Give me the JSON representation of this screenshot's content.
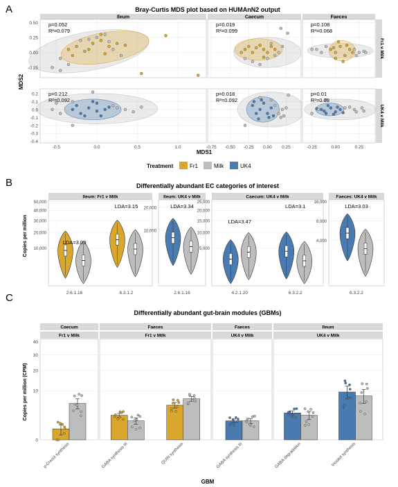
{
  "colors": {
    "Fr1": "#D9A62E",
    "Milk": "#BDBDBD",
    "UK4": "#4A7BB0",
    "strip": "#D9D9D9",
    "grid": "#EBEBEB"
  },
  "panelA": {
    "letter": "A",
    "title": "Bray-Curtis MDS plot based on HUMAnN2 output",
    "xlabel": "MDS1",
    "ylabel": "MDS2",
    "col_strips": [
      "Ileum",
      "Caecum",
      "Faeces"
    ],
    "row_strips": [
      "Fr1 v Milk",
      "UK4 v Milk"
    ],
    "legend_title": "Treatment",
    "legend_items": [
      "Fr1",
      "Milk",
      "UK4"
    ],
    "stats": [
      [
        "p=0.052",
        "R²=0.079"
      ],
      [
        "p=0.019",
        "R²=0.099"
      ],
      [
        "p=0.108",
        "R²=0.068"
      ],
      [
        "p=0.212",
        "R²=0.092"
      ],
      [
        "p=0.018",
        "R²=0.092"
      ],
      [
        "p=0.01",
        "R²=0.09"
      ]
    ],
    "y_ticks_top": [
      "0.50",
      "0.25",
      "0.00",
      "-0.25"
    ],
    "y_ticks_bottom": [
      "0.2",
      "0.1",
      "0.0",
      "-0.1",
      "-0.2",
      "-0.3",
      "-0.4"
    ],
    "x_ticks": [
      [
        "-0.5",
        "0.0",
        "0.5",
        "1.0"
      ],
      [
        "-0.75",
        "-0.50",
        "-0.25",
        "0.00",
        "0.25"
      ],
      [
        "-0.25",
        "0.00",
        "0.25"
      ]
    ]
  },
  "panelB": {
    "letter": "B",
    "title": "Differentially abundant EC categories of interest",
    "ylabel": "Copies per million",
    "facets": [
      {
        "strip": "Ileum: Fr1 v Milk",
        "y_ticks": [
          "50,000",
          "40,000",
          "30,000",
          "20,000",
          "10,000"
        ],
        "x_ticks": [
          "2.6.1.16",
          "6.3.1.2"
        ],
        "lda": [
          "LDA=3.03",
          "LDA=3.15"
        ]
      },
      {
        "strip": "Ileum: UK4 v Milk",
        "y_ticks": [
          "20,000",
          "10,000"
        ],
        "x_ticks": [
          "2.6.1.16"
        ],
        "lda": [
          "LDA=3.34"
        ]
      },
      {
        "strip": "Caecum: UK4 v Milk",
        "y_ticks": [
          "25,000",
          "20,000",
          "15,000",
          "10,000",
          "5,000"
        ],
        "x_ticks": [
          "4.2.1.20",
          "6.3.2.2"
        ],
        "lda": [
          "LDA=3.47",
          "LDA=3.1"
        ]
      },
      {
        "strip": "Faeces: UK4 v Milk",
        "y_ticks": [
          "16,000",
          "8,000",
          "4,000"
        ],
        "x_ticks": [
          "6.3.2.2"
        ],
        "lda": [
          "LDA=3.03"
        ]
      }
    ]
  },
  "panelC": {
    "letter": "C",
    "title": "Differentially abundant gut-brain modules (GBMs)",
    "ylabel": "Copies per million (CPM)",
    "xlabel": "GBM",
    "y_ticks": [
      "40",
      "30",
      "20",
      "10",
      "0"
    ],
    "facets": [
      {
        "strip1": "Caecum",
        "strip2": "Fr1 v Milk"
      },
      {
        "strip1": "Faeces",
        "strip2": "Fr1 v Milk"
      },
      {
        "strip1": "Faeces",
        "strip2": "UK4 v Milk"
      },
      {
        "strip1": "Ileum",
        "strip2": "UK4 v Milk"
      }
    ]
  },
  "chart_data": [
    {
      "type": "scatter",
      "title": "Bray-Curtis MDS plot based on HUMAnN2 output",
      "xlabel": "MDS1",
      "ylabel": "MDS2",
      "series": [
        {
          "name": "Fr1",
          "panel": "Ileum / Fr1 v Milk",
          "points": [
            [
              -0.35,
              0.05
            ],
            [
              -0.25,
              0.1
            ],
            [
              -0.15,
              0.02
            ],
            [
              -0.05,
              0.15
            ],
            [
              0.05,
              0.2
            ],
            [
              0.15,
              0.1
            ],
            [
              0.25,
              0.15
            ],
            [
              -0.3,
              -0.05
            ],
            [
              -0.1,
              0.05
            ],
            [
              0.1,
              -0.02
            ],
            [
              0.35,
              0.12
            ],
            [
              0.85,
              0.28
            ],
            [
              1.25,
              -0.38
            ],
            [
              0.55,
              -0.35
            ],
            [
              0.05,
              0.3
            ]
          ]
        },
        {
          "name": "Milk",
          "panel": "Ileum / Fr1 v Milk",
          "points": [
            [
              -0.55,
              -0.25
            ],
            [
              -0.45,
              -0.1
            ],
            [
              -0.35,
              -0.2
            ],
            [
              -0.2,
              0.2
            ],
            [
              0.0,
              0.25
            ],
            [
              0.1,
              0.3
            ],
            [
              0.2,
              0.05
            ],
            [
              0.3,
              -0.05
            ],
            [
              -0.1,
              0.22
            ],
            [
              0.15,
              0.18
            ],
            [
              -0.45,
              -0.3
            ]
          ]
        },
        {
          "name": "Fr1",
          "panel": "Caecum / Fr1 v Milk",
          "points": [
            [
              -0.3,
              0.05
            ],
            [
              -0.25,
              0.1
            ],
            [
              -0.2,
              0.0
            ],
            [
              -0.15,
              0.08
            ],
            [
              -0.1,
              0.12
            ],
            [
              -0.05,
              0.05
            ],
            [
              0.0,
              0.0
            ],
            [
              0.05,
              0.1
            ],
            [
              0.1,
              0.05
            ],
            [
              -0.35,
              0.0
            ],
            [
              -0.05,
              -0.08
            ]
          ]
        },
        {
          "name": "Milk",
          "panel": "Caecum / Fr1 v Milk",
          "points": [
            [
              -0.2,
              -0.15
            ],
            [
              -0.1,
              -0.2
            ],
            [
              0.0,
              -0.1
            ],
            [
              0.1,
              -0.05
            ],
            [
              0.15,
              0.0
            ],
            [
              0.2,
              0.1
            ],
            [
              0.18,
              0.4
            ],
            [
              0.27,
              0.32
            ],
            [
              -0.3,
              -0.1
            ],
            [
              0.05,
              0.15
            ]
          ]
        },
        {
          "name": "Fr1",
          "panel": "Faeces / Fr1 v Milk",
          "points": [
            [
              -0.05,
              0.05
            ],
            [
              0.0,
              0.0
            ],
            [
              0.05,
              0.1
            ],
            [
              0.1,
              -0.05
            ],
            [
              0.15,
              0.05
            ],
            [
              0.0,
              -0.1
            ],
            [
              0.08,
              -0.15
            ],
            [
              0.12,
              0.12
            ],
            [
              0.03,
              0.18
            ],
            [
              0.18,
              0.0
            ],
            [
              -0.02,
              0.08
            ]
          ]
        },
        {
          "name": "Milk",
          "panel": "Faeces / Fr1 v Milk",
          "points": [
            [
              -0.25,
              0.05
            ],
            [
              -0.15,
              0.0
            ],
            [
              -0.1,
              0.1
            ],
            [
              0.2,
              0.05
            ],
            [
              0.25,
              0.0
            ],
            [
              0.3,
              0.02
            ],
            [
              0.32,
              0.0
            ],
            [
              -0.2,
              0.05
            ],
            [
              0.22,
              -0.05
            ]
          ]
        },
        {
          "name": "UK4",
          "panel": "Ileum / UK4 v Milk",
          "points": [
            [
              -0.3,
              0.0
            ],
            [
              -0.2,
              -0.05
            ],
            [
              -0.1,
              0.02
            ],
            [
              0.0,
              -0.02
            ],
            [
              0.1,
              0.0
            ],
            [
              -0.05,
              0.1
            ],
            [
              0.05,
              -0.08
            ],
            [
              -0.15,
              -0.08
            ],
            [
              0.15,
              0.03
            ],
            [
              -0.25,
              0.05
            ],
            [
              0.0,
              0.08
            ]
          ]
        },
        {
          "name": "Milk",
          "panel": "Ileum / UK4 v Milk",
          "points": [
            [
              -0.45,
              -0.05
            ],
            [
              -0.55,
              0.0
            ],
            [
              -0.3,
              0.1
            ],
            [
              0.2,
              0.05
            ],
            [
              0.35,
              0.0
            ],
            [
              0.45,
              -0.03
            ],
            [
              0.55,
              0.03
            ],
            [
              -0.05,
              0.22
            ],
            [
              -0.3,
              -0.2
            ],
            [
              0.25,
              0.02
            ],
            [
              -0.5,
              0.08
            ]
          ]
        },
        {
          "name": "UK4",
          "panel": "Caecum / UK4 v Milk",
          "points": [
            [
              -0.2,
              0.05
            ],
            [
              -0.15,
              -0.05
            ],
            [
              -0.1,
              0.0
            ],
            [
              -0.05,
              0.08
            ],
            [
              0.0,
              -0.05
            ],
            [
              0.05,
              0.02
            ],
            [
              -0.12,
              -0.12
            ],
            [
              0.02,
              -0.1
            ],
            [
              -0.18,
              0.1
            ],
            [
              -0.08,
              0.12
            ],
            [
              0.08,
              -0.08
            ]
          ]
        },
        {
          "name": "Milk",
          "panel": "Caecum / UK4 v Milk",
          "points": [
            [
              0.1,
              0.05
            ],
            [
              0.15,
              -0.05
            ],
            [
              0.2,
              0.0
            ],
            [
              0.25,
              0.02
            ],
            [
              0.18,
              -0.1
            ],
            [
              0.28,
              0.18
            ],
            [
              -0.3,
              -0.2
            ],
            [
              0.05,
              0.12
            ],
            [
              0.22,
              -0.08
            ],
            [
              -0.1,
              0.15
            ]
          ]
        },
        {
          "name": "UK4",
          "panel": "Faeces / UK4 v Milk",
          "points": [
            [
              -0.15,
              0.0
            ],
            [
              -0.1,
              -0.05
            ],
            [
              -0.05,
              0.02
            ],
            [
              0.0,
              -0.03
            ],
            [
              0.05,
              0.0
            ],
            [
              -0.08,
              0.05
            ],
            [
              0.02,
              0.03
            ],
            [
              -0.12,
              -0.02
            ],
            [
              0.08,
              -0.04
            ],
            [
              -0.02,
              -0.06
            ],
            [
              -0.2,
              0.01
            ]
          ]
        },
        {
          "name": "Milk",
          "panel": "Faeces / UK4 v Milk",
          "points": [
            [
              -0.25,
              -0.05
            ],
            [
              0.1,
              0.02
            ],
            [
              0.2,
              0.0
            ],
            [
              0.28,
              0.02
            ],
            [
              0.3,
              -0.02
            ],
            [
              0.15,
              0.03
            ],
            [
              -0.18,
              0.0
            ],
            [
              -0.1,
              0.12
            ],
            [
              0.22,
              -0.03
            ]
          ]
        }
      ]
    },
    {
      "type": "violin",
      "title": "Differentially abundant EC categories of interest",
      "ylabel": "Copies per million",
      "groups": [
        {
          "facet": "Ileum: Fr1 v Milk",
          "category": "2.6.1.16",
          "Fr1_median": 8800,
          "Milk_median": 4500
        },
        {
          "facet": "Ileum: Fr1 v Milk",
          "category": "6.3.1.2",
          "Fr1_median": 15000,
          "Milk_median": 9500
        },
        {
          "facet": "Ileum: UK4 v Milk",
          "category": "2.6.1.16",
          "UK4_median": 7500,
          "Milk_median": 5000
        },
        {
          "facet": "Caecum: UK4 v Milk",
          "category": "4.2.1.20",
          "UK4_median": 2500,
          "Milk_median": 4000
        },
        {
          "facet": "Caecum: UK4 v Milk",
          "category": "6.3.2.2",
          "UK4_median": 4200,
          "Milk_median": 2200
        },
        {
          "facet": "Faeces: UK4 v Milk",
          "category": "6.3.2.2",
          "UK4_median": 5200,
          "Milk_median": 3000
        }
      ]
    },
    {
      "type": "bar",
      "title": "Differentially abundant gut-brain modules (GBMs)",
      "xlabel": "GBM",
      "ylabel": "Copies per million (CPM)",
      "categories": [
        "p-Cresol synthesis",
        "GABA synthesis III",
        "QUIN synthesis",
        "GABA synthesis III",
        "GABA degradation",
        "Inositol synthesis"
      ],
      "facets": [
        "Caecum / Fr1 v Milk",
        "Faeces / Fr1 v Milk",
        "Faeces / Fr1 v Milk",
        "Faeces / UK4 v Milk",
        "Ileum / UK4 v Milk",
        "Ileum / UK4 v Milk"
      ],
      "series": [
        {
          "name": "Treatment",
          "values": [
            0.5,
            2.5,
            5.0,
            1.5,
            3.0,
            9.5
          ]
        },
        {
          "name": "Milk",
          "values": [
            5.5,
            1.5,
            7.0,
            1.5,
            2.5,
            8.0
          ]
        }
      ],
      "treatment_colors": [
        "Fr1",
        "Fr1",
        "Fr1",
        "UK4",
        "UK4",
        "UK4"
      ],
      "errors": {
        "Treatment": [
          0.4,
          0.4,
          0.8,
          0.3,
          0.5,
          2.5
        ],
        "Milk": [
          1.5,
          0.5,
          0.8,
          0.4,
          0.8,
          2.5
        ]
      }
    }
  ]
}
